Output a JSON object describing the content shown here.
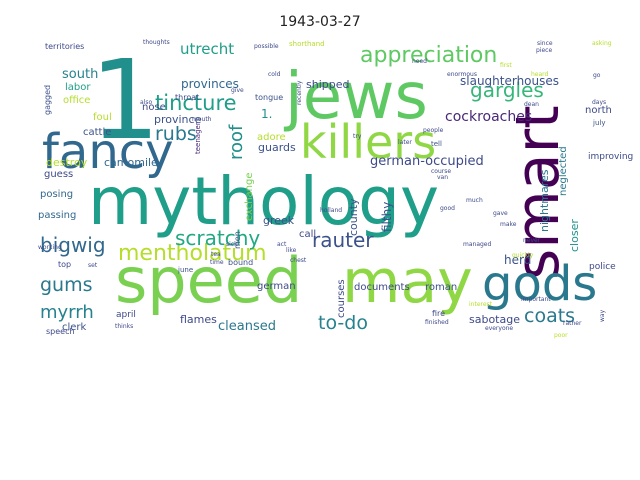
{
  "chart_data": {
    "type": "wordcloud",
    "title": "1943-03-27",
    "background": "#ffffff",
    "palette": [
      "#440154",
      "#482878",
      "#3e4989",
      "#31688e",
      "#26828e",
      "#1f9e89",
      "#35b779",
      "#6ece58",
      "#b5de2b",
      "#fde725"
    ],
    "words": [
      {
        "text": "mythology",
        "weight": 100,
        "color": "#1f9e89"
      },
      {
        "text": "speed",
        "weight": 78,
        "color": "#7ad151"
      },
      {
        "text": "may",
        "weight": 74,
        "color": "#8fd744"
      },
      {
        "text": "1",
        "weight": 72,
        "color": "#21908d"
      },
      {
        "text": "jews",
        "weight": 66,
        "color": "#5ec962"
      },
      {
        "text": "smart",
        "weight": 60,
        "color": "#440154"
      },
      {
        "text": "fancy",
        "weight": 56,
        "color": "#31688e"
      },
      {
        "text": "killers",
        "weight": 55,
        "color": "#8fd744"
      },
      {
        "text": "gods",
        "weight": 48,
        "color": "#2a788e"
      },
      {
        "text": "mentholatum",
        "weight": 22,
        "color": "#b5de2b"
      },
      {
        "text": "tincture",
        "weight": 22,
        "color": "#1f9e89"
      },
      {
        "text": "appreciation",
        "weight": 22,
        "color": "#5ec962"
      },
      {
        "text": "bigwig",
        "weight": 20,
        "color": "#31688e"
      },
      {
        "text": "scratchy",
        "weight": 20,
        "color": "#22a884"
      },
      {
        "text": "rauter",
        "weight": 20,
        "color": "#3b528b"
      },
      {
        "text": "gargles",
        "weight": 19,
        "color": "#35b779"
      },
      {
        "text": "rubs",
        "weight": 19,
        "color": "#2a788e"
      },
      {
        "text": "coats",
        "weight": 19,
        "color": "#2a788e"
      },
      {
        "text": "to-do",
        "weight": 19,
        "color": "#26828e"
      },
      {
        "text": "gums",
        "weight": 18,
        "color": "#2a788e"
      },
      {
        "text": "myrrh",
        "weight": 18,
        "color": "#26828e"
      },
      {
        "text": "roof",
        "weight": 18,
        "color": "#21908d"
      },
      {
        "text": "utrecht",
        "weight": 16,
        "color": "#1f9e89"
      },
      {
        "text": "cockroaches",
        "weight": 14,
        "color": "#482878"
      },
      {
        "text": "cleansed",
        "weight": 14,
        "color": "#2a788e"
      },
      {
        "text": "german-occupied",
        "weight": 13,
        "color": "#3e4989"
      },
      {
        "text": "slaughterhouses",
        "weight": 12,
        "color": "#3b528b"
      },
      {
        "text": "south",
        "weight": 13,
        "color": "#26828e"
      },
      {
        "text": "provinces",
        "weight": 12,
        "color": "#31688e"
      },
      {
        "text": "shipped",
        "weight": 11,
        "color": "#3e4989"
      },
      {
        "text": "province",
        "weight": 11,
        "color": "#3b528b"
      },
      {
        "text": "camomile",
        "weight": 11,
        "color": "#31688e"
      },
      {
        "text": "destroy",
        "weight": 11,
        "color": "#b5de2b"
      },
      {
        "text": "filthy",
        "weight": 12,
        "color": "#3b528b"
      },
      {
        "text": "nightmares",
        "weight": 11,
        "color": "#2a788e"
      },
      {
        "text": "sabotage",
        "weight": 11,
        "color": "#3e4989"
      },
      {
        "text": "herd",
        "weight": 12,
        "color": "#3b528b"
      },
      {
        "text": "county",
        "weight": 11,
        "color": "#3b528b"
      },
      {
        "text": "courses",
        "weight": 10,
        "color": "#3e4989"
      },
      {
        "text": "documents",
        "weight": 10,
        "color": "#3e4989"
      },
      {
        "text": "exchange",
        "weight": 10,
        "color": "#7ad151"
      },
      {
        "text": "flames",
        "weight": 11,
        "color": "#3e4989"
      },
      {
        "text": "guards",
        "weight": 11,
        "color": "#3b528b"
      },
      {
        "text": "greek",
        "weight": 11,
        "color": "#3b528b"
      },
      {
        "text": "german",
        "weight": 10,
        "color": "#3e4989"
      },
      {
        "text": "closer",
        "weight": 11,
        "color": "#21908d"
      },
      {
        "text": "neglected",
        "weight": 10,
        "color": "#2a788e"
      },
      {
        "text": "north",
        "weight": 10,
        "color": "#3e4989"
      },
      {
        "text": "improving",
        "weight": 9,
        "color": "#3e4989"
      },
      {
        "text": "police",
        "weight": 9,
        "color": "#3e4989"
      },
      {
        "text": "roman",
        "weight": 10,
        "color": "#3b528b"
      },
      {
        "text": "clerk",
        "weight": 10,
        "color": "#3b528b"
      },
      {
        "text": "april",
        "weight": 9,
        "color": "#3e4989"
      },
      {
        "text": "passing",
        "weight": 10,
        "color": "#31688e"
      },
      {
        "text": "posing",
        "weight": 10,
        "color": "#31688e"
      },
      {
        "text": "guess",
        "weight": 10,
        "color": "#3e4989"
      },
      {
        "text": "office",
        "weight": 10,
        "color": "#b5de2b"
      },
      {
        "text": "labor",
        "weight": 10,
        "color": "#1f9e89"
      },
      {
        "text": "foul",
        "weight": 10,
        "color": "#b5de2b"
      },
      {
        "text": "cattle",
        "weight": 10,
        "color": "#3b528b"
      },
      {
        "text": "nose",
        "weight": 10,
        "color": "#3e4989"
      },
      {
        "text": "adore",
        "weight": 10,
        "color": "#b5de2b"
      },
      {
        "text": "call",
        "weight": 10,
        "color": "#3e4989"
      },
      {
        "text": "fire",
        "weight": 8,
        "color": "#3e4989"
      },
      {
        "text": "territories",
        "weight": 8,
        "color": "#3e4989"
      },
      {
        "text": "gagged",
        "weight": 8,
        "color": "#3b528b"
      },
      {
        "text": "speech",
        "weight": 8,
        "color": "#3e4989"
      },
      {
        "text": "throat",
        "weight": 8,
        "color": "#3e4989"
      },
      {
        "text": "tongue",
        "weight": 8,
        "color": "#3b528b"
      },
      {
        "text": "men",
        "weight": 8,
        "color": "#3b528b"
      },
      {
        "text": "bound",
        "weight": 8,
        "color": "#3b528b"
      },
      {
        "text": "top",
        "weight": 8,
        "color": "#3e4989"
      },
      {
        "text": "teenager",
        "weight": 7,
        "color": "#482878"
      },
      {
        "text": "tell",
        "weight": 7,
        "color": "#3b528b"
      },
      {
        "text": "july",
        "weight": 7,
        "color": "#3b528b"
      },
      {
        "text": "shorthand",
        "weight": 7,
        "color": "#b5de2b"
      },
      {
        "text": "thoughts",
        "weight": 6,
        "color": "#3e4989"
      },
      {
        "text": "possible",
        "weight": 6,
        "color": "#3e4989"
      },
      {
        "text": "since",
        "weight": 6,
        "color": "#3e4989"
      },
      {
        "text": "asking",
        "weight": 6,
        "color": "#b5de2b"
      },
      {
        "text": "piece",
        "weight": 6,
        "color": "#3e4989"
      },
      {
        "text": "enormous",
        "weight": 6,
        "color": "#3e4989"
      },
      {
        "text": "heard",
        "weight": 6,
        "color": "#b5de2b"
      },
      {
        "text": "days",
        "weight": 6,
        "color": "#3e4989"
      },
      {
        "text": "sick",
        "weight": 6,
        "color": "#3e4989"
      },
      {
        "text": "tea",
        "weight": 6,
        "color": "#3e4989"
      },
      {
        "text": "time",
        "weight": 6,
        "color": "#3e4989"
      },
      {
        "text": "june",
        "weight": 7,
        "color": "#3b528b"
      },
      {
        "text": "working",
        "weight": 6,
        "color": "#3e4989"
      },
      {
        "text": "set",
        "weight": 6,
        "color": "#3e4989"
      },
      {
        "text": "thinks",
        "weight": 6,
        "color": "#3e4989"
      },
      {
        "text": "chest",
        "weight": 6,
        "color": "#3e4989"
      },
      {
        "text": "holland",
        "weight": 6,
        "color": "#3e4989"
      },
      {
        "text": "managed",
        "weight": 6,
        "color": "#3e4989"
      },
      {
        "text": "never",
        "weight": 6,
        "color": "#3e4989"
      },
      {
        "text": "make",
        "weight": 6,
        "color": "#3e4989"
      },
      {
        "text": "gave",
        "weight": 6,
        "color": "#3e4989"
      },
      {
        "text": "quickly",
        "weight": 6,
        "color": "#b5de2b"
      },
      {
        "text": "interest",
        "weight": 6,
        "color": "#b5de2b"
      },
      {
        "text": "important",
        "weight": 6,
        "color": "#3e4989"
      },
      {
        "text": "rather",
        "weight": 6,
        "color": "#3e4989"
      },
      {
        "text": "everyone",
        "weight": 6,
        "color": "#3e4989"
      },
      {
        "text": "finished",
        "weight": 6,
        "color": "#3e4989"
      },
      {
        "text": "poor",
        "weight": 6,
        "color": "#b5de2b"
      },
      {
        "text": "course",
        "weight": 6,
        "color": "#3e4989"
      },
      {
        "text": "van",
        "weight": 6,
        "color": "#3e4989"
      },
      {
        "text": "people",
        "weight": 6,
        "color": "#3e4989"
      },
      {
        "text": "later",
        "weight": 6,
        "color": "#3e4989"
      },
      {
        "text": "much",
        "weight": 6,
        "color": "#3e4989"
      },
      {
        "text": "like",
        "weight": 6,
        "color": "#3e4989"
      },
      {
        "text": "act",
        "weight": 6,
        "color": "#3e4989"
      },
      {
        "text": "try",
        "weight": 6,
        "color": "#3e4989"
      },
      {
        "text": "good",
        "weight": 6,
        "color": "#3e4989"
      },
      {
        "text": "give",
        "weight": 6,
        "color": "#3e4989"
      },
      {
        "text": "cold",
        "weight": 6,
        "color": "#3e4989"
      },
      {
        "text": "mouth",
        "weight": 6,
        "color": "#3e4989"
      },
      {
        "text": "also",
        "weight": 6,
        "color": "#3e4989"
      },
      {
        "text": "recently",
        "weight": 6,
        "color": "#3e4989"
      },
      {
        "text": "need",
        "weight": 6,
        "color": "#3e4989"
      },
      {
        "text": "first",
        "weight": 6,
        "color": "#b5de2b"
      },
      {
        "text": "dean",
        "weight": 6,
        "color": "#3e4989"
      },
      {
        "text": "go",
        "weight": 6,
        "color": "#3e4989"
      },
      {
        "text": "way",
        "weight": 6,
        "color": "#3e4989"
      },
      {
        "text": "1.",
        "weight": 12,
        "color": "#21908d"
      }
    ]
  }
}
